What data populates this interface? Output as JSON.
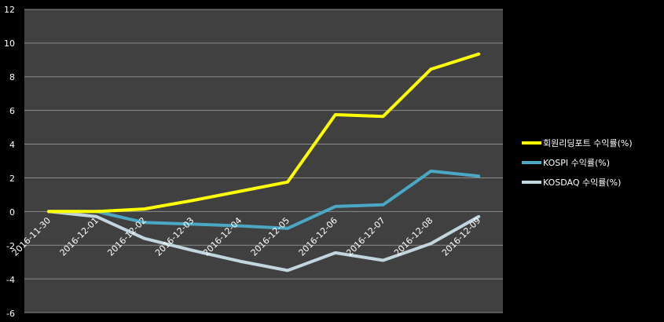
{
  "chart_data": {
    "type": "line",
    "x": [
      "2016-11-30",
      "2016-12-01",
      "2016-12-02",
      "2016-12-03",
      "2016-12-04",
      "2016-12-05",
      "2016-12-06",
      "2016-12-07",
      "2016-12-08",
      "2016-12-09"
    ],
    "ylim": [
      -6,
      12
    ],
    "yticks": [
      "12",
      "10",
      "8",
      "6",
      "4",
      "2",
      "0",
      "-2",
      "-4",
      "-6"
    ],
    "grid": true,
    "legend_position": "right",
    "plot_background": "#404040",
    "gridline_color": "#8c8c8c",
    "series": [
      {
        "name": "회원리딩포트 수익률(%)",
        "color": "#ffff00",
        "values": [
          0.0,
          0.0,
          0.15,
          0.65,
          1.2,
          1.75,
          5.75,
          5.65,
          8.45,
          9.35
        ]
      },
      {
        "name": "KOSPI 수익률(%)",
        "color": "#4ba8c4",
        "values": [
          0.0,
          0.0,
          -0.65,
          -0.75,
          -0.85,
          -1.0,
          0.3,
          0.4,
          2.4,
          2.1
        ]
      },
      {
        "name": "KOSDAQ 수익률(%)",
        "color": "#c2d6e0",
        "values": [
          0.0,
          -0.3,
          -1.6,
          -2.3,
          -2.95,
          -3.5,
          -2.45,
          -2.9,
          -1.9,
          -0.3
        ]
      }
    ]
  }
}
